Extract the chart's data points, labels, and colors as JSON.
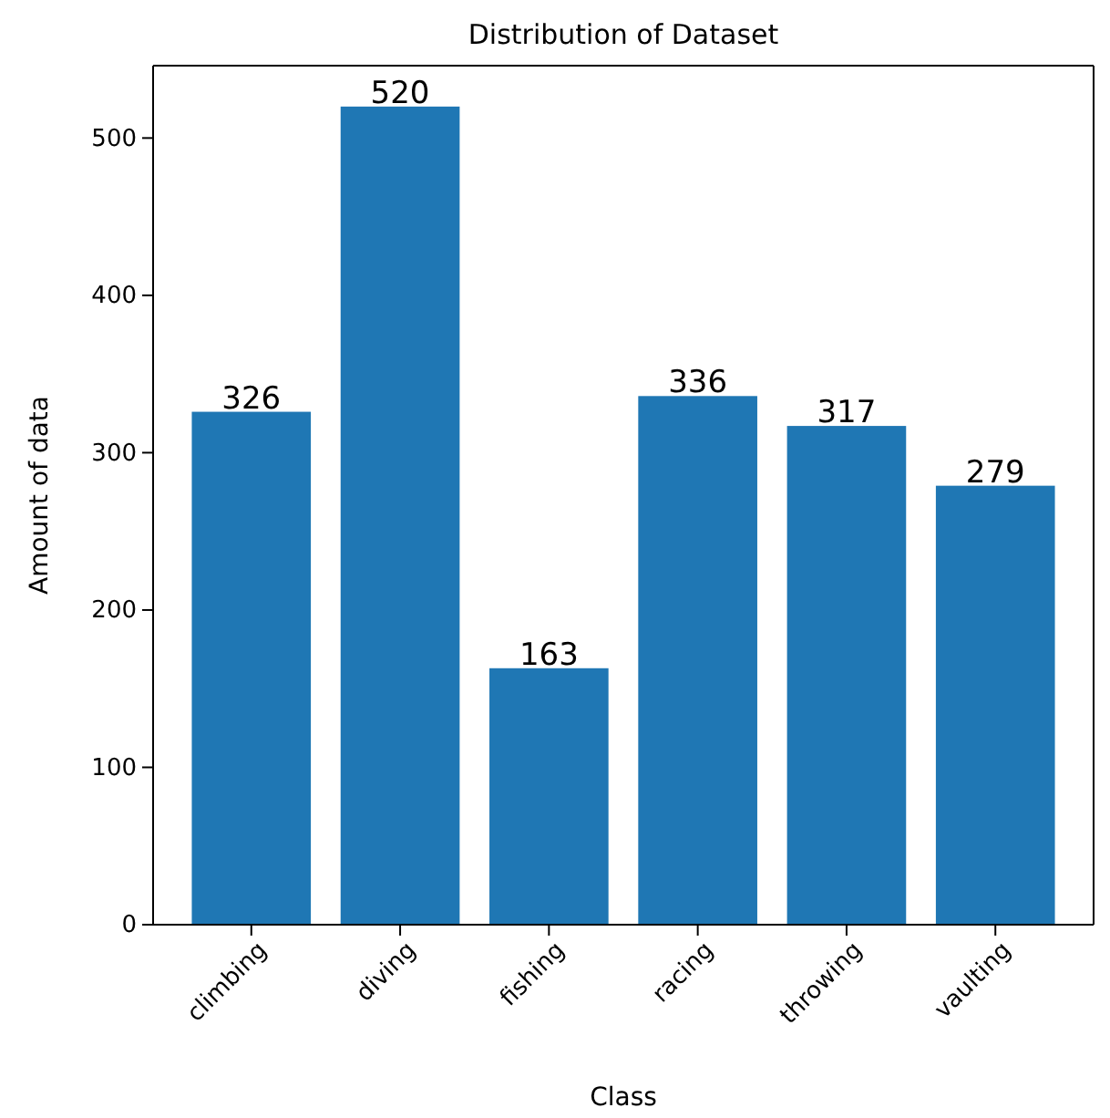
{
  "chart_data": {
    "type": "bar",
    "title": "Distribution of Dataset",
    "xlabel": "Class",
    "ylabel": "Amount of data",
    "categories": [
      "climbing",
      "diving",
      "fishing",
      "racing",
      "throwing",
      "vaulting"
    ],
    "values": [
      326,
      520,
      163,
      336,
      317,
      279
    ],
    "color": "#1f77b4",
    "ylim": [
      0,
      546
    ],
    "yticks": [
      0,
      100,
      200,
      300,
      400,
      500
    ],
    "data_labels": true
  }
}
